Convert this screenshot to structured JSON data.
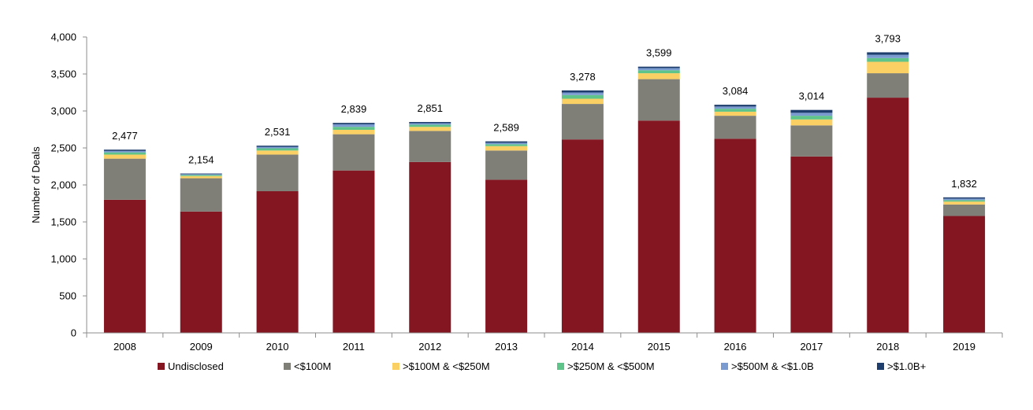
{
  "chart_data": {
    "type": "bar",
    "stacked": true,
    "title": "",
    "xlabel": "",
    "ylabel": "Number of Deals",
    "ylim": [
      0,
      4000
    ],
    "yticks": [
      0,
      500,
      1000,
      1500,
      2000,
      2500,
      3000,
      3500,
      4000
    ],
    "ytick_labels": [
      "0",
      "500",
      "1,000",
      "1,500",
      "2,000",
      "2,500",
      "3,000",
      "3,500",
      "4,000"
    ],
    "categories": [
      "2008",
      "2009",
      "2010",
      "2011",
      "2012",
      "2013",
      "2014",
      "2015",
      "2016",
      "2017",
      "2018",
      "2019"
    ],
    "totals": [
      2477,
      2154,
      2531,
      2839,
      2851,
      2589,
      3278,
      3599,
      3084,
      3014,
      3793,
      1832
    ],
    "total_labels": [
      "2,477",
      "2,154",
      "2,531",
      "2,839",
      "2,851",
      "2,589",
      "3,278",
      "3,599",
      "3,084",
      "3,014",
      "3,793",
      "1,832"
    ],
    "legend_position": "bottom",
    "series": [
      {
        "name": "Undisclosed",
        "color": "#841621",
        "values": [
          1800,
          1640,
          1915,
          2195,
          2310,
          2070,
          2615,
          2870,
          2625,
          2385,
          3180,
          1580
        ]
      },
      {
        "name": "<$100M",
        "color": "#7f7f77",
        "values": [
          555,
          450,
          495,
          490,
          420,
          395,
          480,
          560,
          310,
          420,
          330,
          155
        ]
      },
      {
        "name": ">$100M & <$250M",
        "color": "#fad064",
        "values": [
          55,
          30,
          55,
          60,
          55,
          60,
          70,
          80,
          55,
          80,
          155,
          40
        ]
      },
      {
        "name": ">$250M & <$500M",
        "color": "#5fc48a",
        "values": [
          30,
          15,
          30,
          40,
          30,
          25,
          50,
          40,
          40,
          50,
          50,
          20
        ]
      },
      {
        "name": ">$500M & <$1.0B",
        "color": "#7a9bd0",
        "values": [
          20,
          10,
          20,
          35,
          20,
          20,
          35,
          30,
          30,
          40,
          45,
          20
        ]
      },
      {
        "name": ">$1.0B+",
        "color": "#1e3e6e",
        "values": [
          17,
          9,
          16,
          19,
          16,
          19,
          28,
          19,
          24,
          39,
          33,
          17
        ]
      }
    ]
  }
}
